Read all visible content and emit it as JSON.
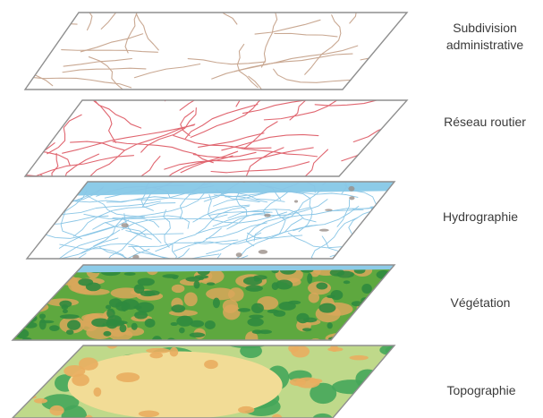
{
  "layers": [
    {
      "id": "admin",
      "label_lines": [
        "Subdivision",
        "administrative"
      ],
      "style": "admin"
    },
    {
      "id": "routes",
      "label_lines": [
        "Réseau routier"
      ],
      "style": "roads"
    },
    {
      "id": "hydro",
      "label_lines": [
        "Hydrographie"
      ],
      "style": "hydro"
    },
    {
      "id": "veg",
      "label_lines": [
        "Végétation"
      ],
      "style": "vegetation"
    },
    {
      "id": "topo",
      "label_lines": [
        "Topographie"
      ],
      "style": "topography"
    }
  ],
  "colors": {
    "frame": "#8f8f8f",
    "admin_lines": "#c9a892",
    "roads": "#e0656f",
    "water_lines": "#8ac6e6",
    "water_fill": "#8ccbe8",
    "water_shade": "#9a8f88",
    "veg_dark": "#2f8a3e",
    "veg_mid": "#5ea83f",
    "veg_dry": "#d9a75a",
    "topo_low": "#45a65a",
    "topo_mid": "#bfd98a",
    "topo_high": "#f2dc96",
    "topo_peak": "#e9ad5f"
  }
}
